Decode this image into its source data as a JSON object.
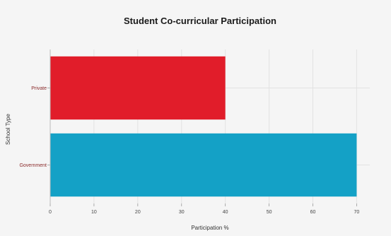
{
  "chart_data": {
    "type": "bar",
    "orientation": "horizontal",
    "title": "Student Co-curricular Participation",
    "xlabel": "Participation %",
    "ylabel": "School Type",
    "categories": [
      "Private",
      "Government"
    ],
    "values": [
      40,
      70
    ],
    "colors": [
      "#e11d2a",
      "#14a1c6"
    ],
    "xlim": [
      0,
      73
    ],
    "xticks": [
      "0",
      "10",
      "20",
      "30",
      "40",
      "50",
      "60",
      "70"
    ],
    "grid": true,
    "legend": "none"
  }
}
